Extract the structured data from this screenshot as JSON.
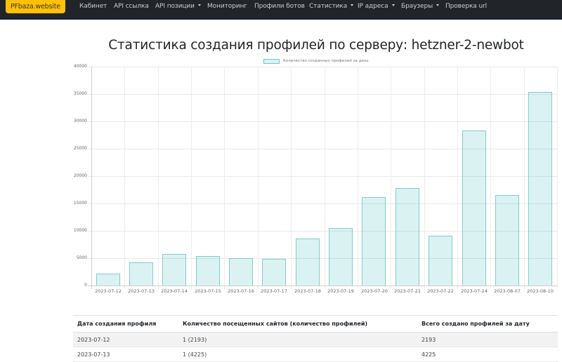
{
  "navbar": {
    "brand": "PFbaza.website",
    "items": [
      {
        "label": "Кабинет",
        "dropdown": false
      },
      {
        "label": "API ссылка",
        "dropdown": false
      },
      {
        "label": "API позиции",
        "dropdown": true
      },
      {
        "label": "Мониторинг",
        "dropdown": false
      },
      {
        "label": "Профили ботов",
        "dropdown": false
      },
      {
        "label": "Статистика",
        "dropdown": true
      },
      {
        "label": "IP адреса",
        "dropdown": true
      },
      {
        "label": "Браузеры",
        "dropdown": true
      },
      {
        "label": "Проверка url",
        "dropdown": false
      }
    ]
  },
  "page": {
    "title": "Статистика создания профилей по серверу: hetzner-2-newbot"
  },
  "colors": {
    "navbar_bg": "#212529",
    "brand_bg": "#ffc107",
    "bar_fill": "rgba(75,192,192,0.2)",
    "bar_border": "#7fcdcd"
  },
  "chart_data": {
    "type": "bar",
    "title": "Статистика создания профилей по серверу: hetzner-2-newbot",
    "legend": [
      "Количество созданных профилей за день"
    ],
    "legend_position": "top",
    "xlabel": "",
    "ylabel": "",
    "ylim": [
      0,
      40000
    ],
    "yticks": [
      "40000",
      "35000",
      "30000",
      "25000",
      "20000",
      "15000",
      "10000",
      "5000",
      "0"
    ],
    "grid": true,
    "categories": [
      "2023-07-12",
      "2023-07-13",
      "2023-07-14",
      "2023-07-15",
      "2023-07-16",
      "2023-07-17",
      "2023-07-18",
      "2023-07-19",
      "2023-07-20",
      "2023-07-21",
      "2023-07-22",
      "2023-07-24",
      "2023-08-07",
      "2023-08-10"
    ],
    "series": [
      {
        "name": "Количество созданных профилей за день",
        "values": [
          2193,
          4225,
          5800,
          5350,
          5050,
          4850,
          8600,
          10500,
          16100,
          17800,
          9100,
          28300,
          16500,
          35400
        ]
      }
    ]
  },
  "table": {
    "headers": [
      "Дата создания профиля",
      "Количество посещенных сайтов (количество профилей)",
      "Всего создано профилей за дату"
    ],
    "rows": [
      [
        "2023-07-12",
        "1 (2193)",
        "2193"
      ],
      [
        "2023-07-13",
        "1 (4225)",
        "4225"
      ]
    ]
  }
}
